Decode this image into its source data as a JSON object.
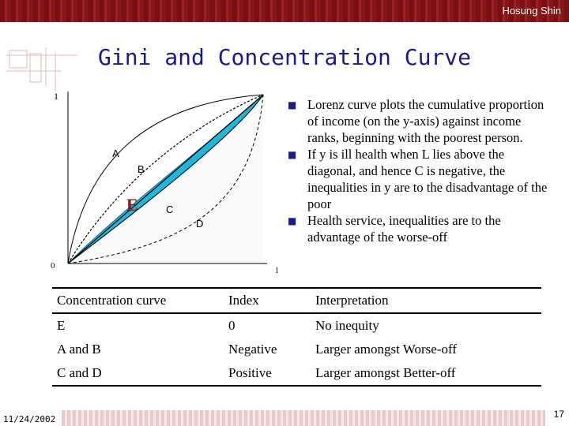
{
  "header": {
    "author": "Hosung Shin"
  },
  "title": "Gini and Concentration Curve",
  "diagram": {
    "axis_top_label": "1",
    "origin_label": "0",
    "axis_right_label": "1",
    "labels": {
      "A": "A",
      "B": "B",
      "E": "E",
      "C": "C",
      "D": "D"
    },
    "fill_color": "#1fb8dc",
    "line_color": "#000000"
  },
  "bullets": [
    "Lorenz curve plots the cumulative proportion of income (on the y-axis) against income ranks, beginning with the poorest person.",
    "If y is ill health when L lies above the diagonal, and hence C is negative, the inequalities in y are to the disadvantage of the poor",
    "Health service, inequalities are to the advantage of the worse-off"
  ],
  "table": {
    "headers": [
      "Concentration curve",
      "Index",
      "Interpretation"
    ],
    "rows": [
      [
        "E",
        "0",
        "No inequity"
      ],
      [
        "A and B",
        "Negative",
        "Larger amongst Worse-off"
      ],
      [
        "C and D",
        "Positive",
        "Larger amongst Better-off"
      ]
    ]
  },
  "footer": {
    "date": "11/24/2002",
    "page": "17"
  },
  "colors": {
    "header_bar": "#7a0f12",
    "title": "#1a1a8a",
    "bullet": "#1a1a8a"
  }
}
